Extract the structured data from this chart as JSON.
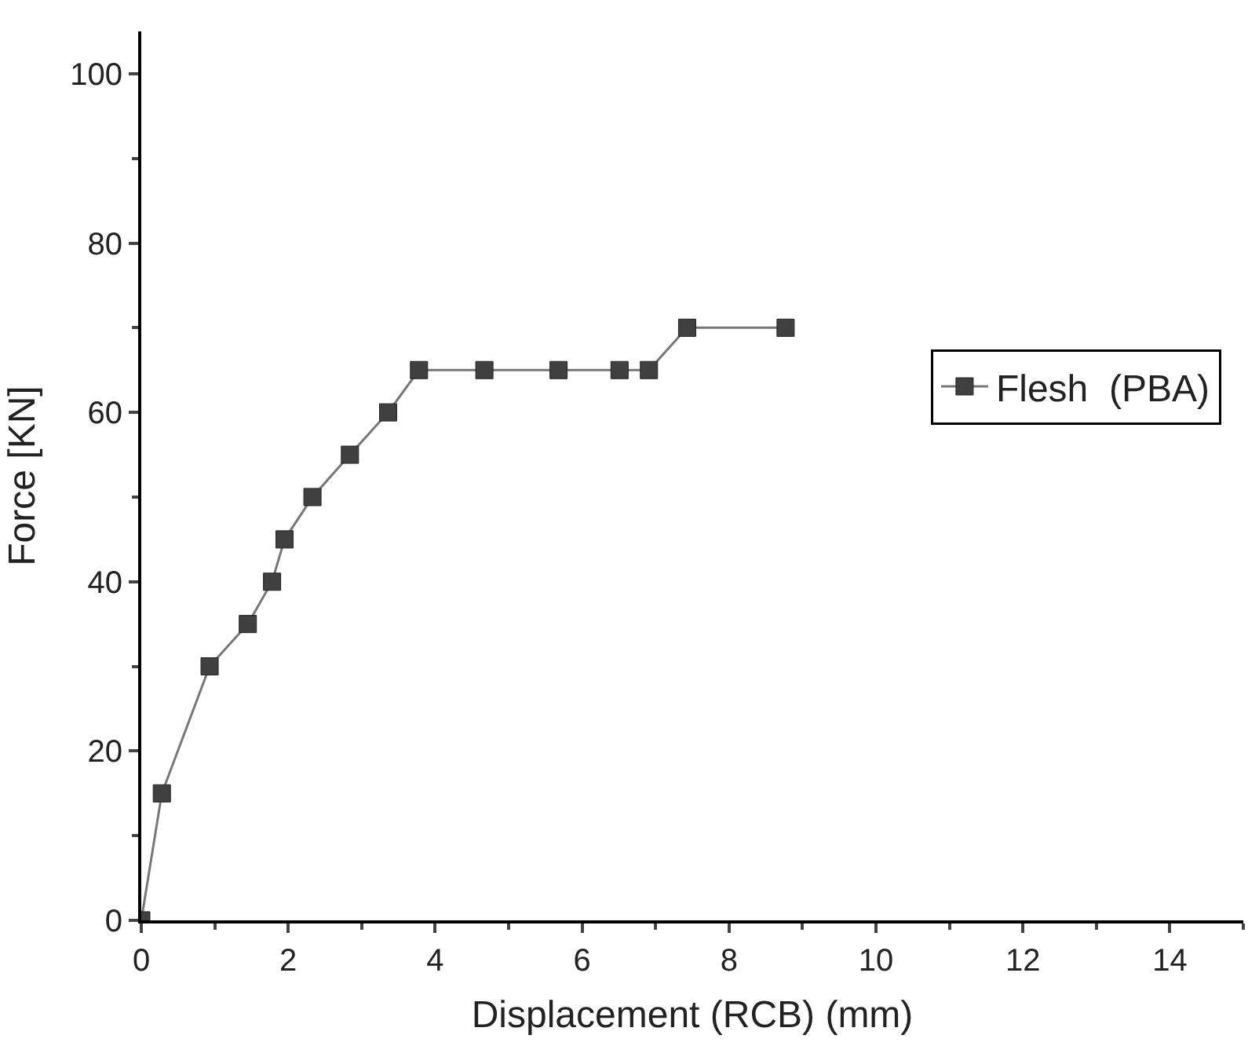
{
  "chart_data": {
    "type": "line",
    "xlabel": "Displacement (RCB) (mm)",
    "ylabel": "Force [KN]",
    "xlim": [
      0,
      15
    ],
    "xticks": [
      0,
      2,
      4,
      6,
      8,
      10,
      12,
      14
    ],
    "ylim": [
      0,
      105
    ],
    "yticks": [
      0,
      20,
      40,
      60,
      80,
      100
    ],
    "legend": "right",
    "marker": "square",
    "line_style": "solid",
    "series": [
      {
        "name": "Flesh  (PBA)",
        "color": "#404040",
        "x": [
          0,
          0.28,
          0.93,
          1.45,
          1.78,
          1.95,
          2.33,
          2.84,
          3.36,
          3.78,
          4.67,
          5.68,
          6.51,
          6.91,
          7.43,
          8.77
        ],
        "values": [
          0,
          15,
          30,
          35,
          40,
          45,
          50,
          55,
          60,
          65,
          65,
          65,
          65,
          65,
          70,
          70
        ]
      }
    ]
  }
}
